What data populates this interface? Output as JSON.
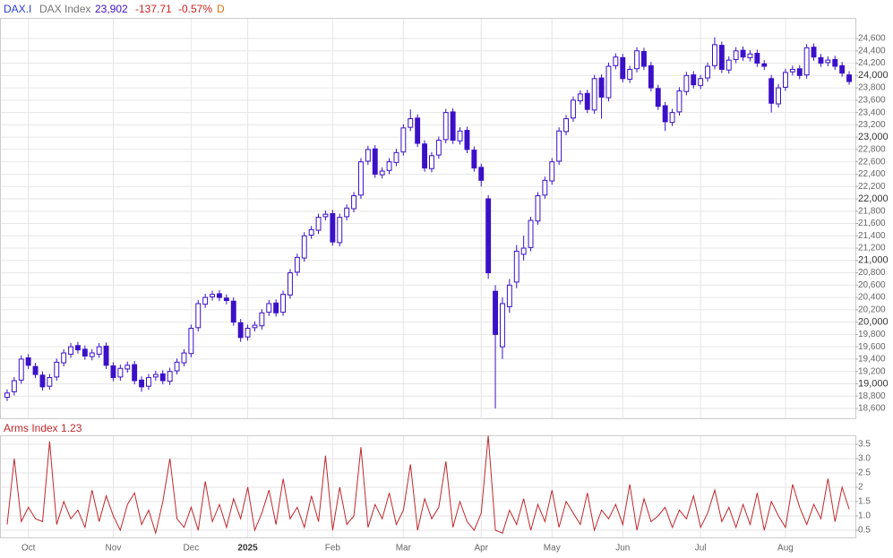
{
  "header": {
    "symbol": "DAX.I",
    "name": "DAX Index",
    "last": "23,902",
    "change": "-137.71",
    "change_pct": "-0.57%",
    "period": "D"
  },
  "chart_data": [
    {
      "type": "candlestick",
      "color": "#3a10c8",
      "grid": true,
      "ylim": [
        18440,
        24920
      ],
      "yticks": [
        {
          "value": 18600,
          "label": "18,600"
        },
        {
          "value": 18800,
          "label": "18,800"
        },
        {
          "value": 19000,
          "label": "19,000"
        },
        {
          "value": 19200,
          "label": "19,200"
        },
        {
          "value": 19400,
          "label": "19,400"
        },
        {
          "value": 19600,
          "label": "19,600"
        },
        {
          "value": 19800,
          "label": "19,800"
        },
        {
          "value": 20000,
          "label": "20,000"
        },
        {
          "value": 20200,
          "label": "20,200"
        },
        {
          "value": 20400,
          "label": "20,400"
        },
        {
          "value": 20600,
          "label": "20,600"
        },
        {
          "value": 20800,
          "label": "20,800"
        },
        {
          "value": 21000,
          "label": "21,000"
        },
        {
          "value": 21200,
          "label": "21,200"
        },
        {
          "value": 21400,
          "label": "21,400"
        },
        {
          "value": 21600,
          "label": "21,600"
        },
        {
          "value": 21800,
          "label": "21,800"
        },
        {
          "value": 22000,
          "label": "22,000"
        },
        {
          "value": 22200,
          "label": "22,200"
        },
        {
          "value": 22400,
          "label": "22,400"
        },
        {
          "value": 22600,
          "label": "22,600"
        },
        {
          "value": 22800,
          "label": "22,800"
        },
        {
          "value": 23000,
          "label": "23,000"
        },
        {
          "value": 23200,
          "label": "23,200"
        },
        {
          "value": 23400,
          "label": "23,400"
        },
        {
          "value": 23600,
          "label": "23,600"
        },
        {
          "value": 23800,
          "label": "23,800"
        },
        {
          "value": 24000,
          "label": "24,000"
        },
        {
          "value": 24200,
          "label": "24,200"
        },
        {
          "value": 24400,
          "label": "24,400"
        },
        {
          "value": 24600,
          "label": "24,600"
        }
      ],
      "x_labels": [
        {
          "index": 3,
          "label": "Oct"
        },
        {
          "index": 15,
          "label": "Nov"
        },
        {
          "index": 26,
          "label": "Dec"
        },
        {
          "index": 34,
          "label": "2025"
        },
        {
          "index": 46,
          "label": "Feb"
        },
        {
          "index": 56,
          "label": "Mar"
        },
        {
          "index": 67,
          "label": "Apr"
        },
        {
          "index": 77,
          "label": "May"
        },
        {
          "index": 87,
          "label": "Jun"
        },
        {
          "index": 98,
          "label": "Jul"
        },
        {
          "index": 110,
          "label": "Aug"
        }
      ],
      "open": [
        18780,
        18870,
        19060,
        19420,
        19280,
        19140,
        18960,
        19110,
        19340,
        19480,
        19620,
        19560,
        19440,
        19480,
        19610,
        19290,
        19110,
        19240,
        19310,
        19060,
        18960,
        19110,
        19160,
        19040,
        19210,
        19340,
        19490,
        19910,
        20290,
        20410,
        20460,
        20390,
        20340,
        19990,
        19760,
        19910,
        19940,
        20160,
        20310,
        20160,
        20440,
        20810,
        21040,
        21410,
        21490,
        21710,
        21760,
        21290,
        21710,
        21840,
        22060,
        22610,
        22810,
        22390,
        22460,
        22590,
        22760,
        23160,
        23310,
        22890,
        22490,
        22710,
        22960,
        23410,
        22940,
        23110,
        22790,
        22510,
        22000,
        20500,
        19600,
        20250,
        20650,
        21100,
        21210,
        21640,
        22060,
        22290,
        22610,
        23090,
        23310,
        23590,
        23710,
        23440,
        23960,
        23640,
        24160,
        24290,
        23940,
        24110,
        24390,
        24160,
        23790,
        23510,
        23240,
        23410,
        23740,
        24010,
        23840,
        23960,
        24160,
        24490,
        24090,
        24260,
        24410,
        24290,
        24360,
        24190,
        23950,
        23540,
        23810,
        24060,
        24110,
        24010,
        24460,
        24290,
        24210,
        24260,
        24160,
        24010
      ],
      "high": [
        18910,
        19110,
        19460,
        19480,
        19340,
        19200,
        19160,
        19410,
        19560,
        19660,
        19680,
        19620,
        19560,
        19660,
        19670,
        19350,
        19310,
        19360,
        19370,
        19120,
        19160,
        19210,
        19220,
        19260,
        19410,
        19560,
        19960,
        20360,
        20460,
        20510,
        20520,
        20450,
        20400,
        20050,
        19960,
        20010,
        20210,
        20360,
        20370,
        20510,
        20860,
        21110,
        21460,
        21560,
        21760,
        21810,
        21820,
        21760,
        21910,
        22110,
        22660,
        22860,
        22870,
        22510,
        22660,
        22810,
        23210,
        23450,
        23370,
        22950,
        22760,
        23010,
        23460,
        23470,
        23160,
        23170,
        22850,
        22570,
        22060,
        20600,
        20400,
        20700,
        21250,
        21400,
        21710,
        22110,
        22360,
        22660,
        23160,
        23360,
        23660,
        23760,
        23770,
        24010,
        24020,
        24210,
        24360,
        24350,
        24160,
        24460,
        24450,
        24220,
        23850,
        23570,
        23460,
        23810,
        24060,
        24070,
        24010,
        24210,
        24620,
        24550,
        24310,
        24460,
        24470,
        24410,
        24420,
        24250,
        24010,
        23860,
        24110,
        24160,
        24170,
        24510,
        24520,
        24350,
        24310,
        24320,
        24220,
        24070
      ],
      "low": [
        18720,
        18810,
        19000,
        19240,
        19090,
        18890,
        18900,
        19050,
        19280,
        19420,
        19490,
        19390,
        19380,
        19420,
        19240,
        19040,
        19050,
        19180,
        18990,
        18870,
        18900,
        19050,
        18990,
        18980,
        19150,
        19280,
        19430,
        19850,
        20230,
        20350,
        20340,
        20290,
        19940,
        19680,
        19700,
        19850,
        19880,
        20100,
        20090,
        20100,
        20380,
        20750,
        20980,
        21350,
        21430,
        21650,
        21240,
        21230,
        21650,
        21780,
        22000,
        22550,
        22340,
        22330,
        22400,
        22530,
        22700,
        23100,
        22840,
        22440,
        22430,
        22650,
        22900,
        22890,
        22880,
        22740,
        22440,
        22200,
        20700,
        18600,
        19400,
        20150,
        20550,
        21000,
        21150,
        21580,
        22000,
        22230,
        22550,
        23030,
        23250,
        23530,
        23390,
        23380,
        23300,
        23580,
        24100,
        23890,
        23880,
        24050,
        24090,
        23740,
        23440,
        23100,
        23180,
        23350,
        23680,
        23790,
        23780,
        23900,
        24100,
        24040,
        24030,
        24200,
        24240,
        24230,
        24140,
        24090,
        23400,
        23480,
        23750,
        24000,
        23940,
        23950,
        24240,
        24140,
        24150,
        24090,
        23980,
        23850
      ],
      "close": [
        18850,
        19050,
        19400,
        19300,
        19150,
        18950,
        19100,
        19350,
        19500,
        19600,
        19550,
        19450,
        19500,
        19600,
        19300,
        19100,
        19250,
        19300,
        19050,
        18950,
        19100,
        19150,
        19050,
        19200,
        19350,
        19500,
        19900,
        20300,
        20400,
        20450,
        20400,
        20350,
        20000,
        19750,
        19900,
        19950,
        20150,
        20300,
        20150,
        20450,
        20800,
        21050,
        21400,
        21500,
        21700,
        21750,
        21300,
        21700,
        21850,
        22050,
        22600,
        22800,
        22400,
        22450,
        22600,
        22750,
        23150,
        23300,
        22900,
        22500,
        22700,
        22950,
        23400,
        22950,
        23100,
        22800,
        22500,
        22300,
        20800,
        19800,
        20300,
        20600,
        21150,
        21200,
        21650,
        22050,
        22300,
        22600,
        23100,
        23300,
        23600,
        23700,
        23450,
        23950,
        23650,
        24150,
        24300,
        23950,
        24100,
        24400,
        24150,
        23800,
        23500,
        23250,
        23400,
        23750,
        24000,
        23850,
        23950,
        24150,
        24500,
        24100,
        24250,
        24400,
        24300,
        24350,
        24200,
        24150,
        23550,
        23800,
        24050,
        24100,
        24000,
        24450,
        24300,
        24200,
        24250,
        24150,
        24040,
        23902
      ]
    },
    {
      "type": "line",
      "title": "Arms Index 1.23",
      "color": "#c0282d",
      "grid": true,
      "ylim": [
        0.25,
        3.78
      ],
      "yticks": [
        0.5,
        {
          "value": 1,
          "label": "1.0"
        },
        1.5,
        2,
        2.5,
        {
          "value": 3,
          "label": "3.0"
        },
        3.5
      ],
      "values": [
        0.7,
        3.0,
        0.8,
        1.3,
        0.9,
        0.8,
        3.6,
        0.7,
        1.5,
        0.9,
        1.2,
        0.6,
        1.9,
        0.8,
        1.7,
        1.0,
        0.5,
        1.4,
        1.8,
        0.7,
        1.2,
        0.4,
        1.5,
        3.0,
        0.9,
        0.6,
        1.3,
        0.5,
        2.2,
        0.8,
        1.4,
        0.6,
        1.6,
        0.9,
        2.0,
        0.5,
        1.1,
        1.9,
        0.7,
        2.3,
        0.9,
        1.3,
        0.6,
        1.7,
        0.8,
        3.1,
        0.5,
        2.0,
        0.7,
        1.0,
        3.4,
        0.6,
        1.4,
        0.9,
        1.8,
        0.7,
        1.2,
        2.8,
        0.5,
        1.6,
        0.9,
        1.3,
        2.9,
        0.6,
        1.5,
        0.8,
        0.5,
        1.1,
        3.8,
        0.5,
        0.4,
        1.2,
        0.7,
        1.6,
        0.5,
        1.4,
        0.8,
        1.9,
        0.6,
        1.5,
        1.1,
        0.7,
        1.8,
        0.5,
        1.2,
        0.9,
        1.4,
        0.7,
        2.1,
        0.5,
        1.6,
        0.8,
        1.0,
        1.3,
        0.6,
        1.2,
        0.9,
        1.7,
        0.6,
        1.1,
        1.9,
        0.8,
        1.3,
        0.6,
        1.4,
        0.7,
        1.8,
        0.5,
        1.5,
        1.0,
        0.6,
        2.1,
        1.3,
        0.7,
        1.4,
        0.9,
        2.3,
        0.8,
        2.0,
        1.23
      ]
    }
  ]
}
